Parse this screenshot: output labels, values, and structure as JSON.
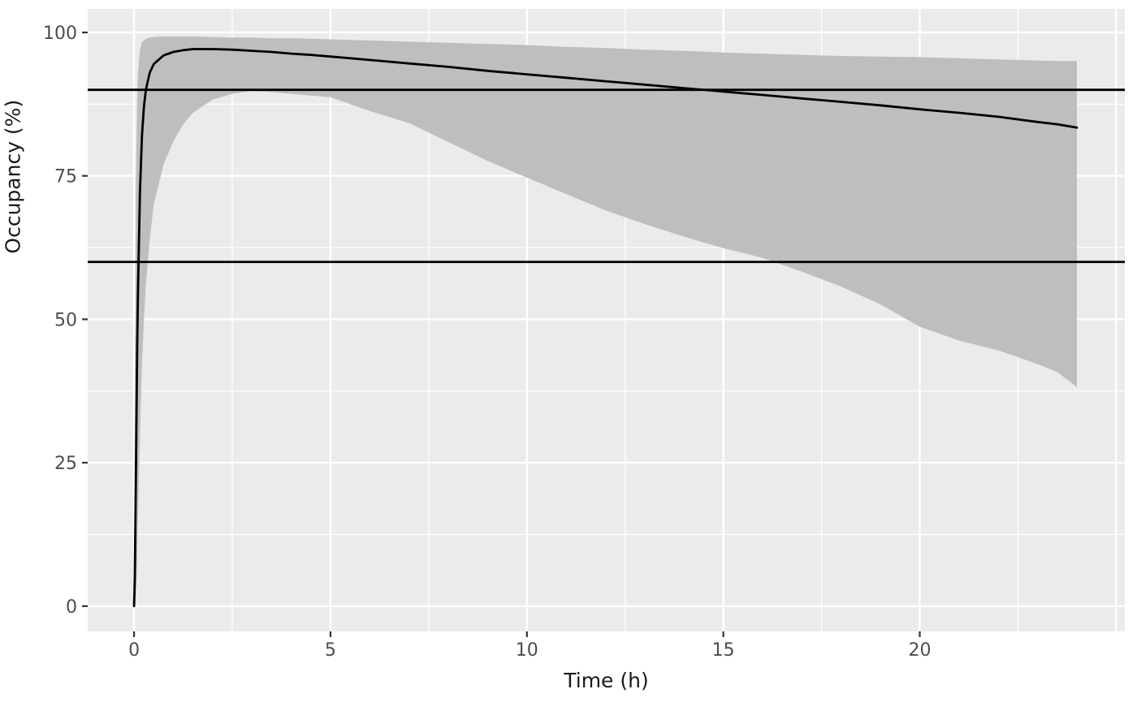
{
  "chart_data": {
    "type": "line",
    "title": "",
    "xlabel": "Time (h)",
    "ylabel": "Occupancy (%)",
    "x_ticks": [
      0,
      5,
      10,
      15,
      20
    ],
    "y_ticks": [
      0,
      25,
      50,
      75,
      100
    ],
    "x_grid_major": [
      0,
      5,
      10,
      15,
      20,
      25
    ],
    "x_grid_minor": [
      2.5,
      7.5,
      12.5,
      17.5,
      22.5
    ],
    "y_grid_major": [
      0,
      25,
      50,
      75,
      100
    ],
    "y_grid_minor": [
      12.5,
      37.5,
      62.5,
      87.5
    ],
    "xlim": [
      -1.18,
      25.22
    ],
    "ylim": [
      -4.4,
      104.1
    ],
    "grid": true,
    "legend": "none",
    "reference_lines_y": [
      90,
      60
    ],
    "x": [
      0,
      0.02,
      0.05,
      0.08,
      0.1,
      0.15,
      0.2,
      0.25,
      0.3,
      0.4,
      0.5,
      0.75,
      1,
      1.25,
      1.5,
      2,
      2.5,
      3,
      3.5,
      4,
      4.5,
      5,
      6,
      7,
      8,
      9,
      10,
      11,
      12,
      13,
      14,
      15,
      16,
      17,
      18,
      19,
      20,
      21,
      22,
      23,
      23.5,
      24
    ],
    "series": [
      {
        "name": "median_occupancy",
        "values": [
          0,
          5,
          25,
          45,
          55,
          72,
          82,
          87,
          90,
          93,
          94.5,
          96,
          96.6,
          96.9,
          97.1,
          97.1,
          97.0,
          96.8,
          96.6,
          96.3,
          96.1,
          95.8,
          95.2,
          94.6,
          94.0,
          93.3,
          92.7,
          92.1,
          91.5,
          90.9,
          90.3,
          89.7,
          89.1,
          88.5,
          87.9,
          87.3,
          86.6,
          86.0,
          85.3,
          84.4,
          84.0,
          83.4
        ]
      },
      {
        "name": "ci_lower",
        "values": [
          0,
          0,
          2,
          8,
          15,
          30,
          42,
          50,
          56,
          64,
          70,
          77,
          81,
          84,
          86,
          88.3,
          89.3,
          89.8,
          89.6,
          89.3,
          89.0,
          88.7,
          86.3,
          84.2,
          80.9,
          77.6,
          74.7,
          71.8,
          69.0,
          66.6,
          64.4,
          62.4,
          60.7,
          58.3,
          55.7,
          52.6,
          48.7,
          46.3,
          44.6,
          42.2,
          40.8,
          38.2
        ]
      },
      {
        "name": "ci_upper",
        "values": [
          0,
          40,
          75,
          88,
          93,
          97,
          98.3,
          98.6,
          98.9,
          99.1,
          99.2,
          99.3,
          99.3,
          99.3,
          99.3,
          99.2,
          99.1,
          99.1,
          99.0,
          99.0,
          98.9,
          98.8,
          98.6,
          98.4,
          98.2,
          98.0,
          97.8,
          97.5,
          97.3,
          97.0,
          96.8,
          96.5,
          96.3,
          96.1,
          95.9,
          95.8,
          95.7,
          95.5,
          95.3,
          95.1,
          95.0,
          95.0
        ]
      }
    ],
    "colors": {
      "figure_bg": "#FFFFFF",
      "panel_bg": "#EBEBEB",
      "grid": "#FFFFFF",
      "ribbon": "#BEBEBE",
      "line": "#000000",
      "reference_line": "#000000",
      "tick_label": "#4D4D4D",
      "tick_mark": "#333333",
      "axis_title": "#1A1A1A"
    }
  }
}
